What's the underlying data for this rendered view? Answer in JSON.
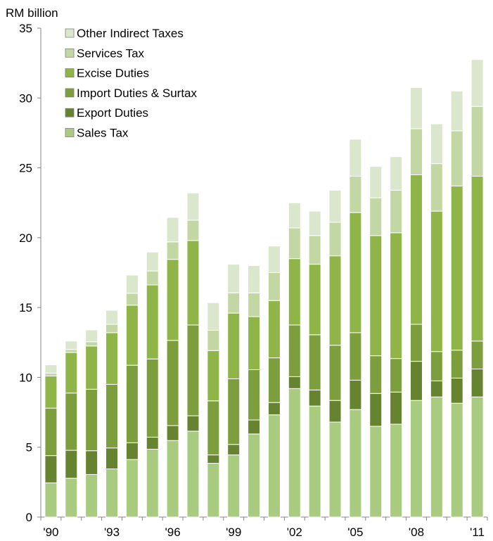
{
  "chart_data": {
    "type": "bar",
    "stacked": true,
    "unit_label": "RM billion",
    "categories": [
      "1990",
      "1991",
      "1992",
      "1993",
      "1994",
      "1995",
      "1996",
      "1997",
      "1998",
      "1999",
      "2000",
      "2001",
      "2002",
      "2003",
      "2004",
      "2005",
      "2006",
      "2007",
      "2008",
      "2009",
      "2010",
      "2011"
    ],
    "x_tick_labels": [
      "'90",
      "",
      "",
      "'93",
      "",
      "",
      "'96",
      "",
      "",
      "'99",
      "",
      "",
      "'02",
      "",
      "",
      "'05",
      "",
      "",
      "'08",
      "",
      "",
      "'11"
    ],
    "ylim": [
      0,
      35
    ],
    "y_ticks": [
      0,
      5,
      10,
      15,
      20,
      25,
      30,
      35
    ],
    "grid": false,
    "legend_position": "top-left",
    "series": [
      {
        "name": "Sales Tax",
        "color": "#a9cb80",
        "values": [
          2.45,
          2.78,
          3.05,
          3.45,
          4.12,
          4.86,
          5.48,
          6.15,
          3.85,
          4.45,
          5.95,
          7.32,
          9.2,
          7.95,
          6.8,
          7.7,
          6.5,
          6.65,
          8.35,
          8.6,
          8.15,
          8.6
        ]
      },
      {
        "name": "Export Duties",
        "color": "#66832f",
        "values": [
          1.95,
          2.0,
          1.7,
          1.5,
          1.2,
          0.86,
          1.07,
          1.1,
          0.6,
          0.75,
          1.0,
          0.88,
          0.85,
          1.15,
          1.55,
          2.1,
          2.35,
          2.3,
          2.8,
          1.15,
          1.8,
          2.0
        ]
      },
      {
        "name": "Import Duties & Surtax",
        "color": "#7d9e3c",
        "values": [
          3.4,
          4.1,
          4.4,
          4.55,
          5.55,
          5.6,
          6.1,
          6.5,
          3.87,
          4.7,
          3.6,
          3.2,
          3.7,
          3.95,
          3.95,
          3.4,
          2.7,
          2.4,
          2.65,
          2.1,
          2.0,
          2.0
        ]
      },
      {
        "name": "Excise Duties",
        "color": "#8fb549",
        "values": [
          2.3,
          2.9,
          3.1,
          3.7,
          4.3,
          5.3,
          5.8,
          6.05,
          3.6,
          4.7,
          3.8,
          4.1,
          4.75,
          5.05,
          6.4,
          8.6,
          8.6,
          9.0,
          10.7,
          10.05,
          11.75,
          11.8
        ]
      },
      {
        "name": "Services Tax",
        "color": "#c3d7a4",
        "values": [
          0.2,
          0.22,
          0.3,
          0.6,
          0.85,
          1.0,
          1.25,
          1.45,
          1.45,
          1.45,
          1.7,
          2.0,
          2.2,
          2.05,
          2.4,
          2.6,
          2.7,
          3.05,
          3.3,
          3.4,
          3.95,
          5.0
        ]
      },
      {
        "name": "Other Indirect Taxes",
        "color": "#dae7cc",
        "values": [
          0.6,
          0.6,
          0.85,
          1.0,
          1.3,
          1.35,
          1.75,
          1.95,
          1.98,
          2.05,
          1.95,
          1.9,
          1.8,
          1.75,
          2.3,
          2.65,
          2.25,
          2.4,
          2.95,
          2.85,
          2.85,
          3.35
        ]
      }
    ],
    "legend_order": [
      "Other Indirect Taxes",
      "Services Tax",
      "Excise Duties",
      "Import Duties & Surtax",
      "Export Duties",
      "Sales Tax"
    ]
  }
}
